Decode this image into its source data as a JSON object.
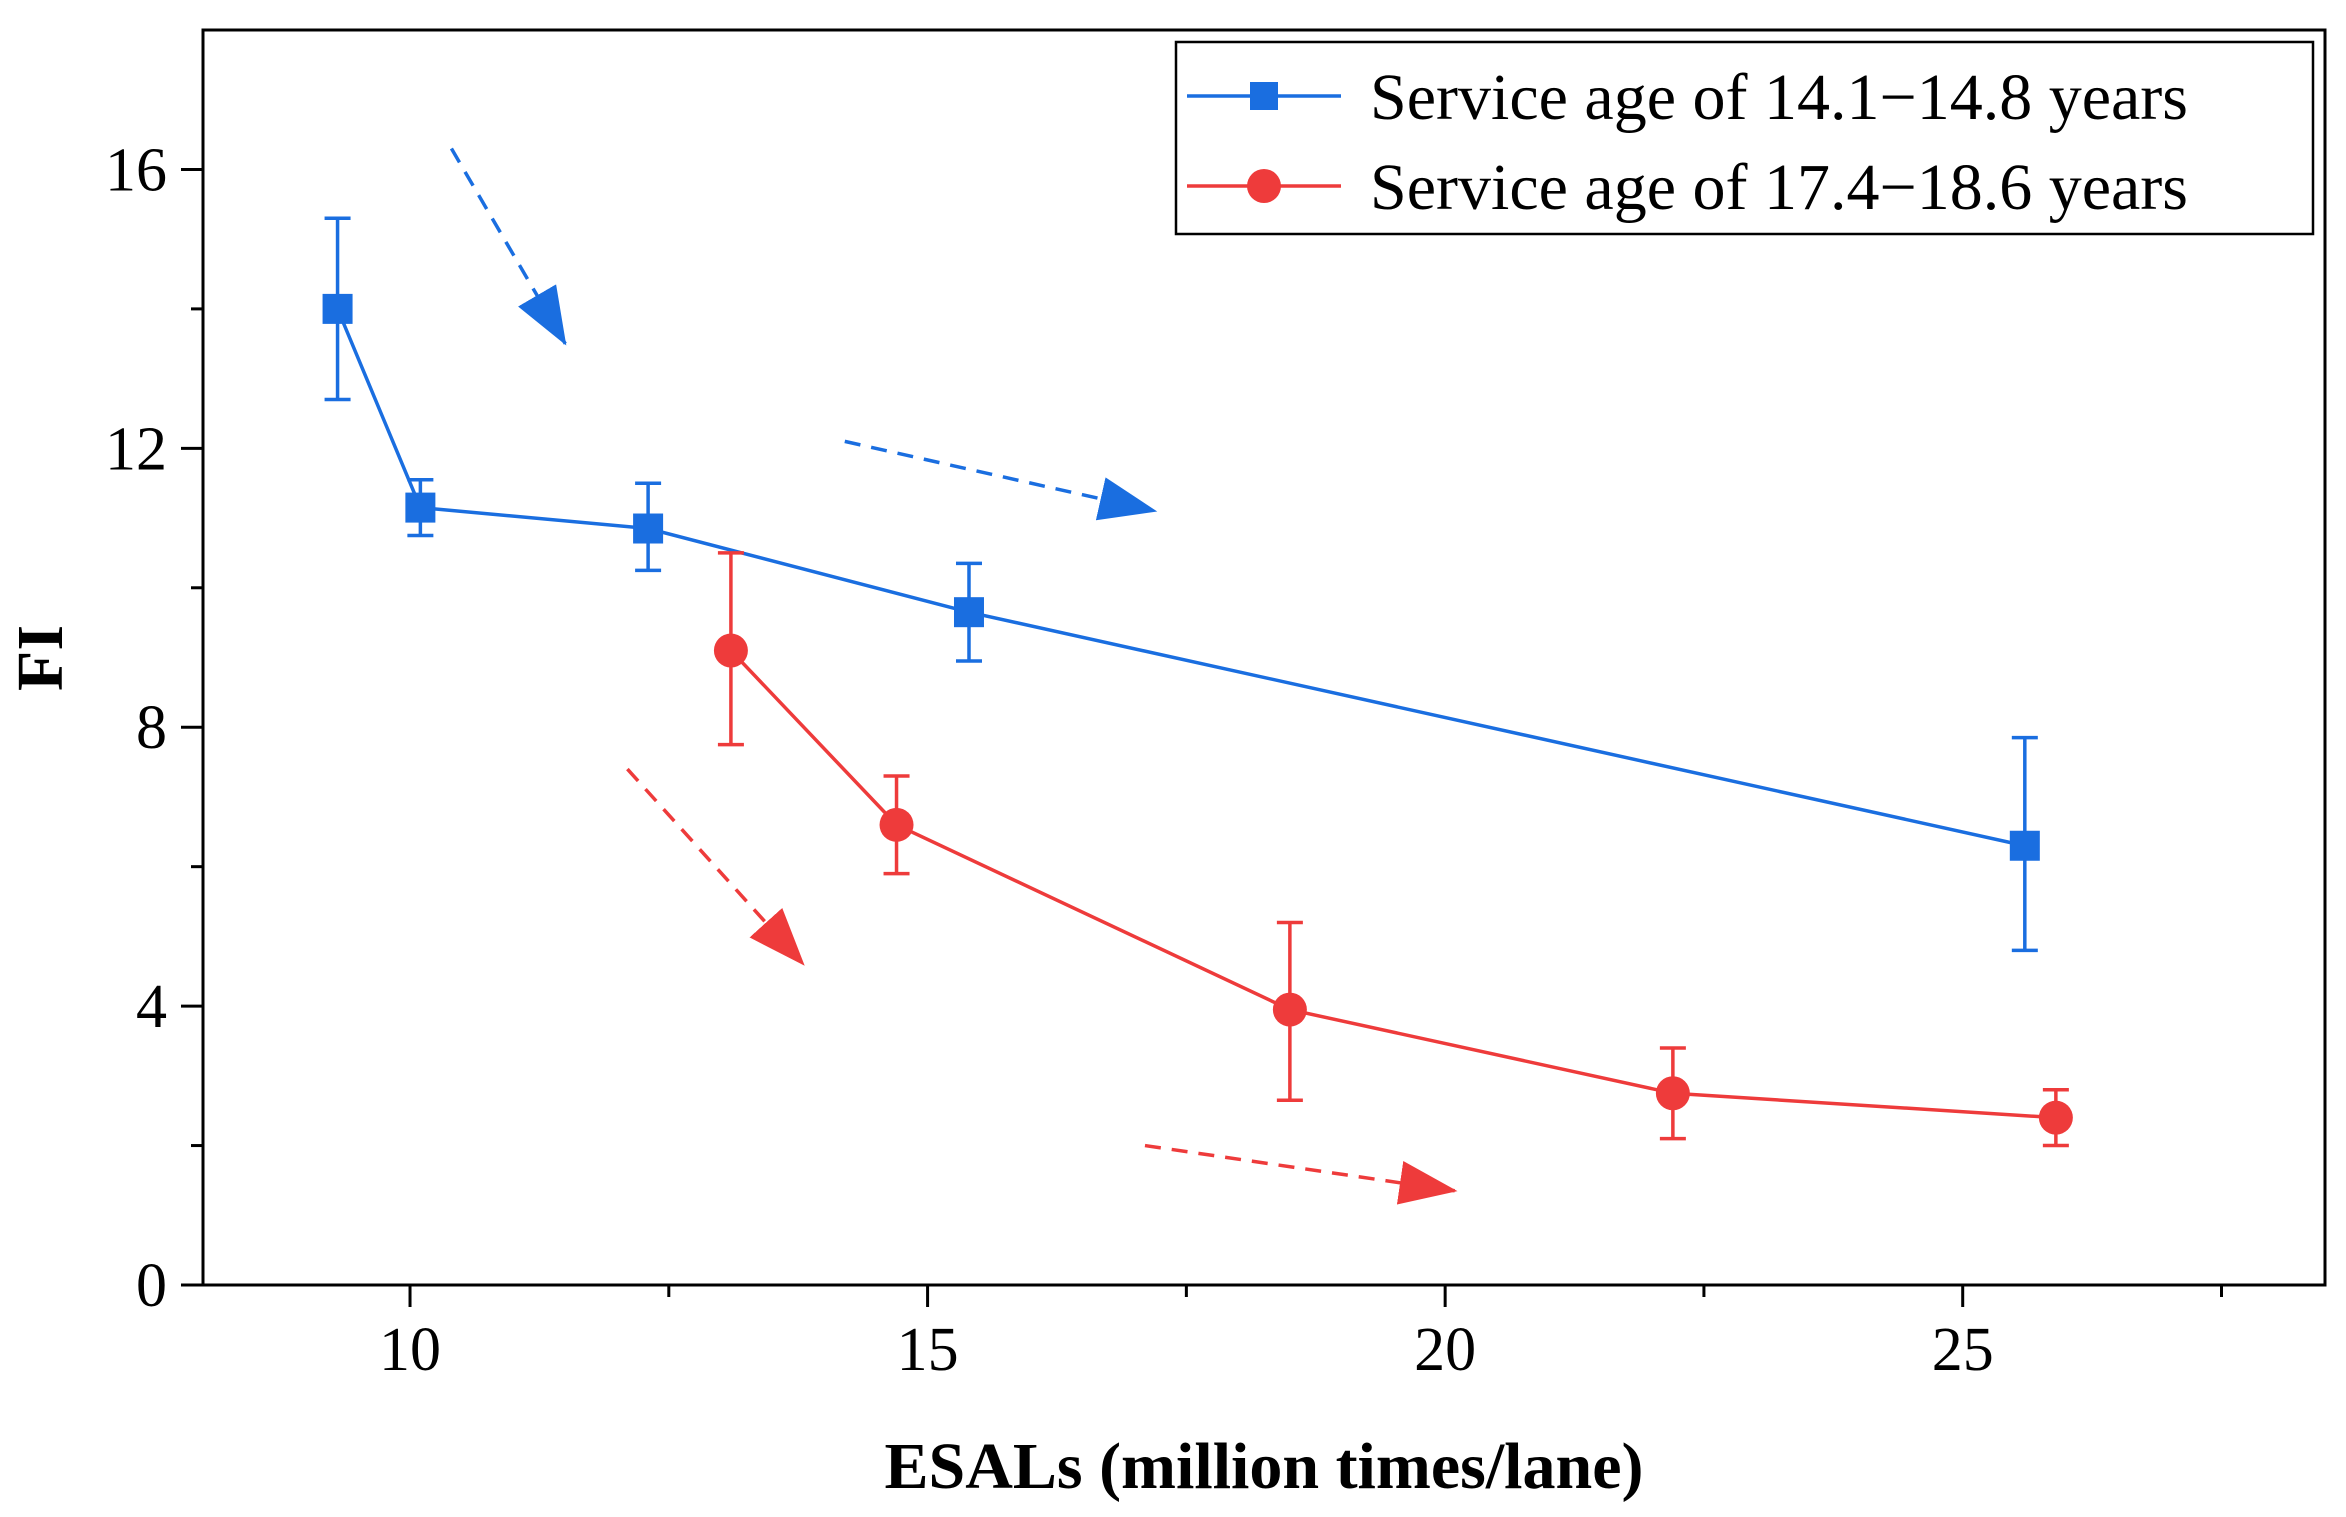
{
  "chart_data": {
    "type": "line",
    "title": "",
    "xlabel": "ESALs (million times/lane)",
    "ylabel": "FI",
    "xlim": [
      8,
      28.5
    ],
    "ylim": [
      0,
      18
    ],
    "xticks": [
      10,
      15,
      20,
      25
    ],
    "yticks": [
      0,
      4,
      8,
      12,
      16
    ],
    "x_minor_ticks": [
      12.5,
      17.5,
      22.5,
      27.5
    ],
    "y_minor_ticks": [
      2,
      6,
      10,
      14
    ],
    "grid": false,
    "legend_position": "top-right",
    "series": [
      {
        "name": "Service age of 14.1−14.8 years",
        "color": "#1a6ee0",
        "marker": "square",
        "x": [
          9.3,
          10.1,
          12.3,
          15.4,
          25.6
        ],
        "y": [
          14.0,
          11.15,
          10.85,
          9.65,
          6.3
        ],
        "err_low": [
          12.7,
          10.75,
          10.25,
          8.95,
          4.8
        ],
        "err_high": [
          15.3,
          11.55,
          11.5,
          10.35,
          7.85
        ]
      },
      {
        "name": "Service age of 17.4−18.6 years",
        "color": "#ee3b3b",
        "marker": "circle",
        "x": [
          13.1,
          14.7,
          18.5,
          22.2,
          25.9
        ],
        "y": [
          9.1,
          6.6,
          3.95,
          2.75,
          2.4
        ],
        "err_low": [
          7.75,
          5.9,
          2.65,
          2.1,
          2.0
        ],
        "err_high": [
          10.5,
          7.3,
          5.2,
          3.4,
          2.8
        ]
      }
    ],
    "trend_arrows": [
      {
        "series": 0,
        "from": [
          10.4,
          16.3
        ],
        "to": [
          11.5,
          13.5
        ]
      },
      {
        "series": 0,
        "from": [
          14.2,
          12.1
        ],
        "to": [
          17.2,
          11.1
        ]
      },
      {
        "series": 1,
        "from": [
          12.1,
          7.4
        ],
        "to": [
          13.8,
          4.6
        ]
      },
      {
        "series": 1,
        "from": [
          17.1,
          2.0
        ],
        "to": [
          20.1,
          1.35
        ]
      }
    ]
  }
}
